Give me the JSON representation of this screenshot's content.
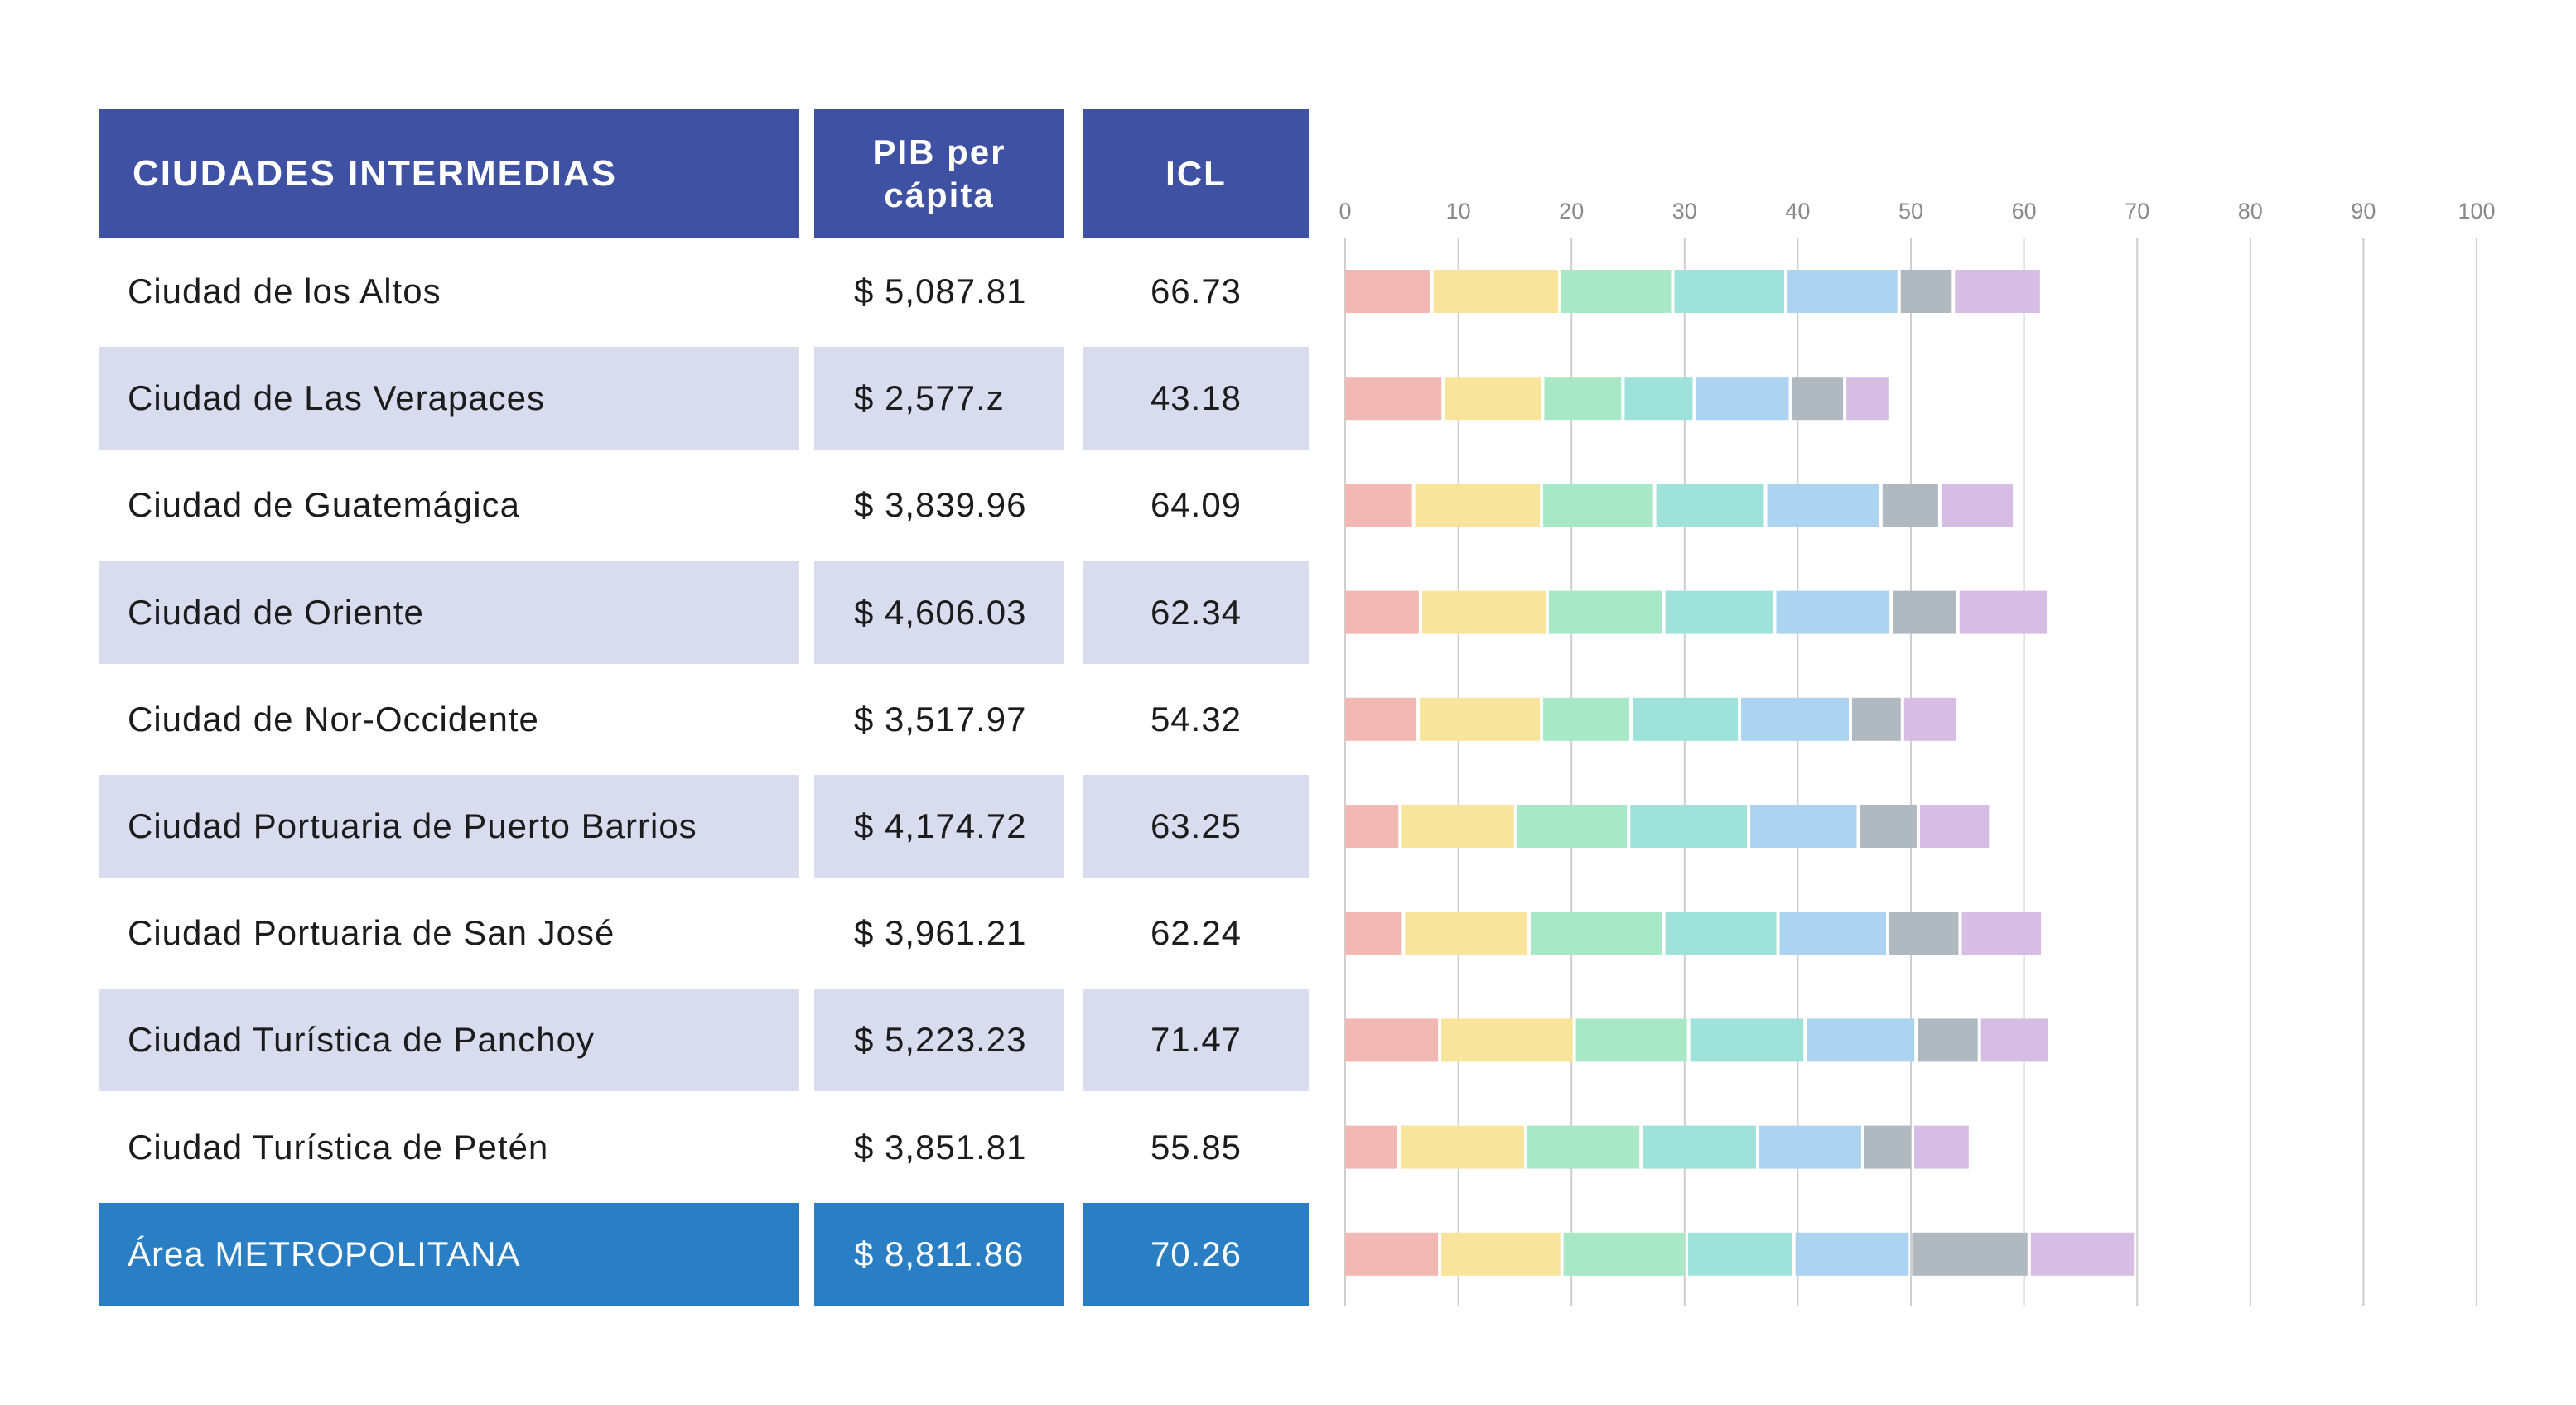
{
  "table": {
    "headers": {
      "city": "CIUDADES INTERMEDIAS",
      "pib": "PIB per cápita",
      "icl": "ICL"
    },
    "rows": [
      {
        "city": "Ciudad de los Altos",
        "pib": "$ 5,087.81",
        "icl": "66.73"
      },
      {
        "city": "Ciudad de Las Verapaces",
        "pib": "$ 2,577.z",
        "icl": "43.18"
      },
      {
        "city": "Ciudad de Guatemágica",
        "pib": "$ 3,839.96",
        "icl": "64.09"
      },
      {
        "city": "Ciudad de Oriente",
        "pib": "$ 4,606.03",
        "icl": "62.34"
      },
      {
        "city": "Ciudad de Nor-Occidente",
        "pib": "$ 3,517.97",
        "icl": "54.32"
      },
      {
        "city": "Ciudad Portuaria de Puerto Barrios",
        "pib": "$ 4,174.72",
        "icl": "63.25"
      },
      {
        "city": "Ciudad Portuaria de San José",
        "pib": "$ 3,961.21",
        "icl": "62.24"
      },
      {
        "city": "Ciudad Turística de Panchoy",
        "pib": "$ 5,223.23",
        "icl": "71.47"
      },
      {
        "city": "Ciudad Turística de Petén",
        "pib": "$ 3,851.81",
        "icl": "55.85"
      },
      {
        "city": "Área METROPOLITANA",
        "pib": "$ 8,811.86",
        "icl": "70.26"
      }
    ]
  },
  "colors": {
    "header_bg": "#3f51a3",
    "row_shade": "#d9dcee",
    "metro_bg": "#2a7fc4"
  },
  "chart_data": {
    "type": "bar",
    "orientation": "horizontal",
    "stacked": true,
    "title": "",
    "xlabel": "",
    "ylabel": "",
    "xlim": [
      0,
      100
    ],
    "xticks": [
      0,
      10,
      20,
      30,
      40,
      50,
      60,
      70,
      80,
      90,
      100
    ],
    "grid": true,
    "categories": [
      "Ciudad de los Altos",
      "Ciudad de Las Verapaces",
      "Ciudad de Guatemágica",
      "Ciudad de Oriente",
      "Ciudad de Nor-Occidente",
      "Ciudad Portuaria de Puerto Barrios",
      "Ciudad Portuaria de San José",
      "Ciudad Turística de Panchoy",
      "Ciudad Turística de Petén",
      "Área METROPOLITANA"
    ],
    "series_colors": [
      "#f2b8b3",
      "#f8e59b",
      "#a9e8c6",
      "#9fe2d9",
      "#acd4f1",
      "#b0b8c0",
      "#d6bde3"
    ],
    "series": [
      {
        "values": [
          7.8,
          8.8,
          6.2,
          6.8,
          6.6,
          5.0,
          5.3,
          8.5,
          4.9,
          8.5
        ]
      },
      {
        "values": [
          11.3,
          8.8,
          11.3,
          11.2,
          10.9,
          10.2,
          11.1,
          11.9,
          11.2,
          10.8
        ]
      },
      {
        "values": [
          10.0,
          7.1,
          10.0,
          10.3,
          7.9,
          10.0,
          11.9,
          10.1,
          10.2,
          11.0
        ]
      },
      {
        "values": [
          10.0,
          6.3,
          9.8,
          9.8,
          9.6,
          10.6,
          10.1,
          10.3,
          10.3,
          9.5
        ]
      },
      {
        "values": [
          10.0,
          8.5,
          10.2,
          10.3,
          9.8,
          9.7,
          9.7,
          9.8,
          9.3,
          10.3
        ]
      },
      {
        "values": [
          4.8,
          4.8,
          5.2,
          5.9,
          4.6,
          5.3,
          6.4,
          5.6,
          4.4,
          10.5
        ]
      },
      {
        "values": [
          7.8,
          4.0,
          6.6,
          8.0,
          4.9,
          6.4,
          7.3,
          6.2,
          5.1,
          9.4
        ]
      }
    ]
  }
}
